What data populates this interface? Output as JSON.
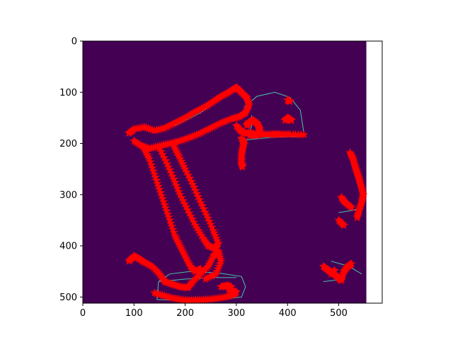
{
  "colors": {
    "background": "#440154",
    "edge": "#47c5a9",
    "marker": "#ff0000",
    "axes": "#000000",
    "figure": "#ffffff"
  },
  "chart_data": {
    "type": "scatter",
    "image_shape": [
      512,
      554
    ],
    "xlim": [
      0,
      585
    ],
    "ylim": [
      512,
      0
    ],
    "x_ticks": [
      0,
      100,
      200,
      300,
      400,
      500
    ],
    "y_ticks": [
      0,
      100,
      200,
      300,
      400,
      500
    ],
    "marker": "*",
    "edge_paths": [
      [
        [
          140,
          175
        ],
        [
          180,
          165
        ],
        [
          230,
          140
        ],
        [
          265,
          115
        ],
        [
          290,
          95
        ],
        [
          300,
          85
        ]
      ],
      [
        [
          315,
          130
        ],
        [
          340,
          108
        ],
        [
          375,
          100
        ],
        [
          405,
          110
        ],
        [
          425,
          135
        ],
        [
          432,
          180
        ]
      ],
      [
        [
          318,
          193
        ],
        [
          370,
          188
        ],
        [
          432,
          186
        ]
      ],
      [
        [
          145,
          505
        ],
        [
          148,
          470
        ],
        [
          170,
          455
        ],
        [
          210,
          450
        ],
        [
          265,
          453
        ],
        [
          310,
          460
        ],
        [
          318,
          480
        ],
        [
          310,
          500
        ],
        [
          250,
          507
        ],
        [
          180,
          506
        ],
        [
          145,
          505
        ]
      ],
      [
        [
          150,
          470
        ],
        [
          200,
          465
        ],
        [
          250,
          462
        ],
        [
          300,
          462
        ]
      ],
      [
        [
          330,
          145
        ],
        [
          330,
          165
        ],
        [
          323,
          185
        ]
      ],
      [
        [
          485,
          430
        ],
        [
          520,
          440
        ],
        [
          545,
          455
        ]
      ],
      [
        [
          500,
          335
        ],
        [
          530,
          330
        ],
        [
          548,
          325
        ]
      ],
      [
        [
          470,
          470
        ],
        [
          510,
          465
        ]
      ]
    ],
    "point_segments": [
      [
        [
          90,
          180
        ],
        [
          100,
          172
        ],
        [
          120,
          168
        ],
        [
          140,
          175
        ],
        [
          160,
          170
        ],
        [
          180,
          160
        ],
        [
          200,
          150
        ],
        [
          220,
          138
        ],
        [
          240,
          128
        ],
        [
          255,
          118
        ],
        [
          270,
          108
        ],
        [
          285,
          100
        ],
        [
          300,
          90
        ],
        [
          310,
          100
        ],
        [
          320,
          110
        ],
        [
          325,
          125
        ],
        [
          318,
          140
        ],
        [
          305,
          148
        ],
        [
          290,
          152
        ],
        [
          270,
          160
        ],
        [
          250,
          170
        ],
        [
          230,
          180
        ],
        [
          210,
          188
        ],
        [
          190,
          195
        ],
        [
          170,
          200
        ],
        [
          150,
          205
        ],
        [
          130,
          210
        ],
        [
          115,
          205
        ],
        [
          100,
          195
        ]
      ],
      [
        [
          120,
          210
        ],
        [
          130,
          230
        ],
        [
          140,
          260
        ],
        [
          150,
          290
        ],
        [
          160,
          320
        ],
        [
          170,
          350
        ],
        [
          180,
          380
        ],
        [
          190,
          400
        ],
        [
          200,
          420
        ],
        [
          210,
          440
        ],
        [
          220,
          450
        ],
        [
          230,
          445
        ]
      ],
      [
        [
          150,
          210
        ],
        [
          165,
          240
        ],
        [
          178,
          270
        ],
        [
          190,
          300
        ],
        [
          205,
          330
        ],
        [
          220,
          360
        ],
        [
          235,
          385
        ],
        [
          245,
          400
        ],
        [
          258,
          405
        ],
        [
          265,
          395
        ],
        [
          255,
          370
        ],
        [
          242,
          340
        ],
        [
          228,
          310
        ],
        [
          215,
          280
        ],
        [
          200,
          250
        ],
        [
          188,
          225
        ],
        [
          178,
          205
        ]
      ],
      [
        [
          90,
          430
        ],
        [
          100,
          420
        ],
        [
          110,
          425
        ],
        [
          120,
          432
        ],
        [
          135,
          440
        ],
        [
          150,
          455
        ],
        [
          160,
          470
        ],
        [
          175,
          475
        ],
        [
          190,
          480
        ],
        [
          205,
          482
        ],
        [
          215,
          470
        ],
        [
          230,
          455
        ],
        [
          245,
          440
        ],
        [
          255,
          420
        ],
        [
          265,
          410
        ],
        [
          270,
          430
        ],
        [
          260,
          455
        ],
        [
          240,
          465
        ]
      ],
      [
        [
          140,
          492
        ],
        [
          160,
          498
        ],
        [
          180,
          503
        ],
        [
          200,
          506
        ],
        [
          220,
          506
        ],
        [
          240,
          505
        ],
        [
          260,
          503
        ],
        [
          280,
          500
        ],
        [
          295,
          495
        ],
        [
          300,
          490
        ],
        [
          285,
          485
        ]
      ],
      [
        [
          270,
          480
        ],
        [
          282,
          478
        ],
        [
          290,
          480
        ]
      ],
      [
        [
          300,
          165
        ],
        [
          308,
          175
        ],
        [
          318,
          180
        ],
        [
          330,
          180
        ],
        [
          340,
          185
        ]
      ],
      [
        [
          320,
          165
        ],
        [
          325,
          158
        ],
        [
          333,
          155
        ],
        [
          340,
          160
        ],
        [
          345,
          170
        ],
        [
          345,
          180
        ]
      ],
      [
        [
          310,
          190
        ],
        [
          315,
          200
        ],
        [
          312,
          212
        ],
        [
          310,
          225
        ],
        [
          310,
          240
        ],
        [
          312,
          246
        ]
      ],
      [
        [
          326,
          185
        ],
        [
          350,
          182
        ],
        [
          370,
          182
        ],
        [
          385,
          182
        ],
        [
          405,
          182
        ],
        [
          432,
          183
        ]
      ],
      [
        [
          395,
          155
        ],
        [
          400,
          150
        ],
        [
          405,
          153
        ],
        [
          408,
          155
        ]
      ],
      [
        [
          400,
          115
        ],
        [
          405,
          118
        ]
      ],
      [
        [
          522,
          218
        ],
        [
          528,
          230
        ],
        [
          532,
          245
        ],
        [
          536,
          258
        ],
        [
          540,
          270
        ],
        [
          544,
          285
        ],
        [
          548,
          300
        ],
        [
          545,
          315
        ],
        [
          540,
          330
        ],
        [
          536,
          345
        ]
      ],
      [
        [
          505,
          305
        ],
        [
          512,
          315
        ],
        [
          525,
          325
        ]
      ],
      [
        [
          500,
          350
        ],
        [
          510,
          360
        ]
      ],
      [
        [
          470,
          440
        ],
        [
          480,
          448
        ],
        [
          490,
          455
        ],
        [
          500,
          462
        ],
        [
          505,
          468
        ],
        [
          510,
          450
        ],
        [
          518,
          440
        ],
        [
          525,
          435
        ]
      ],
      [
        [
          485,
          455
        ],
        [
          492,
          448
        ]
      ]
    ]
  }
}
